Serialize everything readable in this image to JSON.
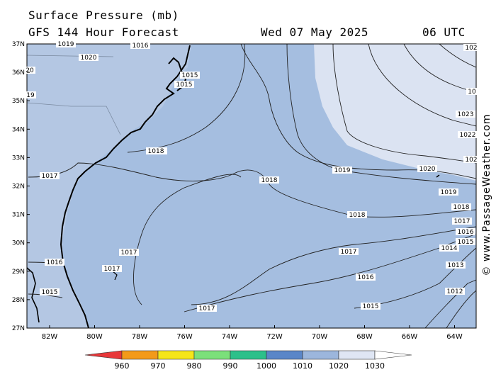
{
  "header": {
    "title": "Surface Pressure (mb)",
    "subtitle": "GFS 144 Hour Forecast",
    "date": "Wed 07 May 2025",
    "time": "06 UTC"
  },
  "credit": "© www.PassageWeather.com",
  "axes": {
    "lat_labels": [
      "37N",
      "36N",
      "35N",
      "34N",
      "33N",
      "32N",
      "31N",
      "30N",
      "29N",
      "28N",
      "27N"
    ],
    "lon_labels": [
      "82W",
      "80W",
      "78W",
      "76W",
      "74W",
      "72W",
      "70W",
      "68W",
      "66W",
      "64W"
    ]
  },
  "isobar_labels": [
    "1019",
    "1020",
    "1016",
    "1016",
    "1015",
    "1015",
    "19",
    "20",
    "1018",
    "1017",
    "1018",
    "1019",
    "1020",
    "1023",
    "1022",
    "102",
    "102",
    "10",
    "1019",
    "1018",
    "1017",
    "1016",
    "1015",
    "1014",
    "1013",
    "1012",
    "1018",
    "1017",
    "1017",
    "1017",
    "1016",
    "1015",
    "1017",
    "1016",
    "1015"
  ],
  "legend": {
    "labels": [
      "960",
      "970",
      "980",
      "990",
      "1000",
      "1010",
      "1020",
      "1030"
    ],
    "colors": [
      "#e8383a",
      "#f39a1a",
      "#f5e61a",
      "#7be07a",
      "#2cc08a",
      "#5a86c8",
      "#9cb6dc",
      "#dfe6f4",
      "#ffffff"
    ]
  },
  "colors": {
    "ocean": "#a5bee0",
    "high_pressure": "#dbe3f2",
    "land": "#b4c7e3",
    "coast": "#000000"
  }
}
